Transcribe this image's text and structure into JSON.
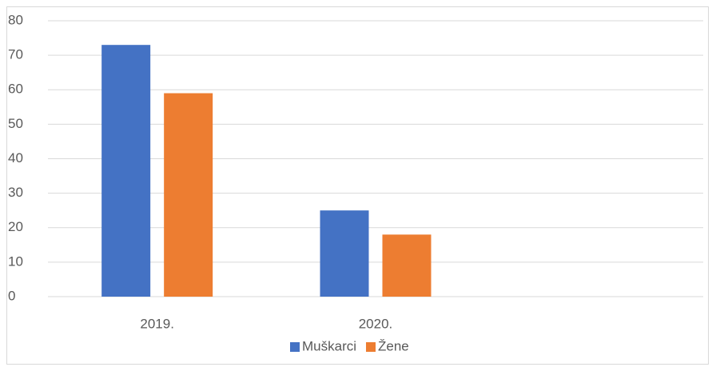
{
  "chart_data": {
    "type": "bar",
    "categories": [
      "2019.",
      "2020.",
      null
    ],
    "series": [
      {
        "name": "Muškarci",
        "color": "#4472c4",
        "values": [
          73,
          25,
          null
        ]
      },
      {
        "name": "Žene",
        "color": "#ed7d31",
        "values": [
          59,
          18,
          null
        ]
      }
    ],
    "ylim": [
      0,
      80
    ],
    "yticks": [
      0,
      10,
      20,
      30,
      40,
      50,
      60,
      70,
      80
    ],
    "grid": true,
    "legend": "bottom"
  }
}
